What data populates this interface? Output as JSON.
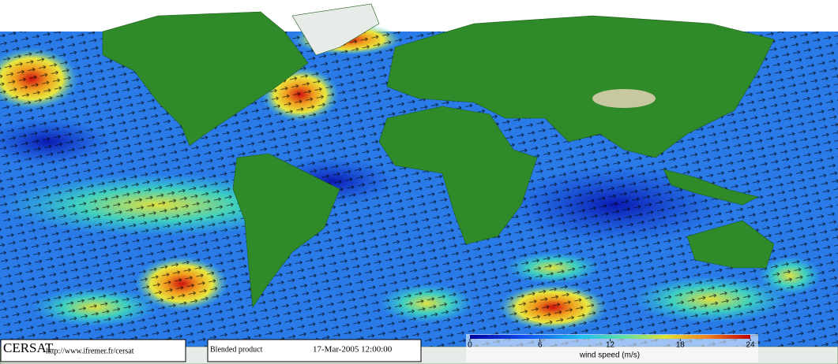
{
  "footer": {
    "logo": "CERSAT",
    "url": "http://www.ifremer.fr/cersat",
    "product": "Blended product",
    "date": "17-Mar-2005 12:00:00"
  },
  "colorbar": {
    "label": "wind speed (m/s)",
    "range": [
      0,
      24
    ],
    "ticks": [
      0,
      6,
      12,
      18,
      24
    ]
  }
}
